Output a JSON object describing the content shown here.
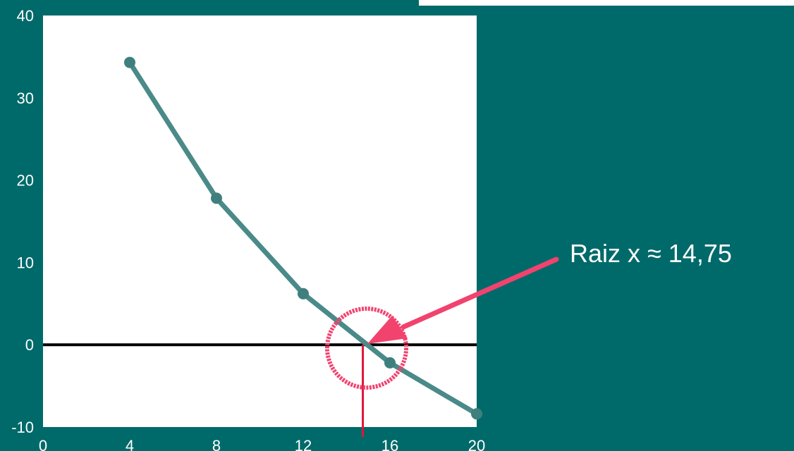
{
  "chart_data": {
    "type": "line",
    "x": [
      4,
      8,
      12,
      16,
      20
    ],
    "y": [
      34.3,
      17.8,
      6.2,
      -2.2,
      -8.4
    ],
    "xlim": [
      0,
      20
    ],
    "ylim": [
      -10,
      40
    ],
    "x_ticks": [
      "0",
      "4",
      "8",
      "12",
      "16",
      "20"
    ],
    "y_ticks": [
      "-10",
      "0",
      "10",
      "20",
      "30",
      "40"
    ],
    "grid": false,
    "zero_line": true,
    "root": 14.75,
    "annotation": "Raiz x ≈ 14,75",
    "colors": {
      "background": "#006a6a",
      "plot_area": "#ffffff",
      "series": "#4a8a88",
      "marker": "#3f7f7d",
      "zero_line": "#000000",
      "root_marker": "#e0143c",
      "highlight": "#f2426e"
    }
  }
}
